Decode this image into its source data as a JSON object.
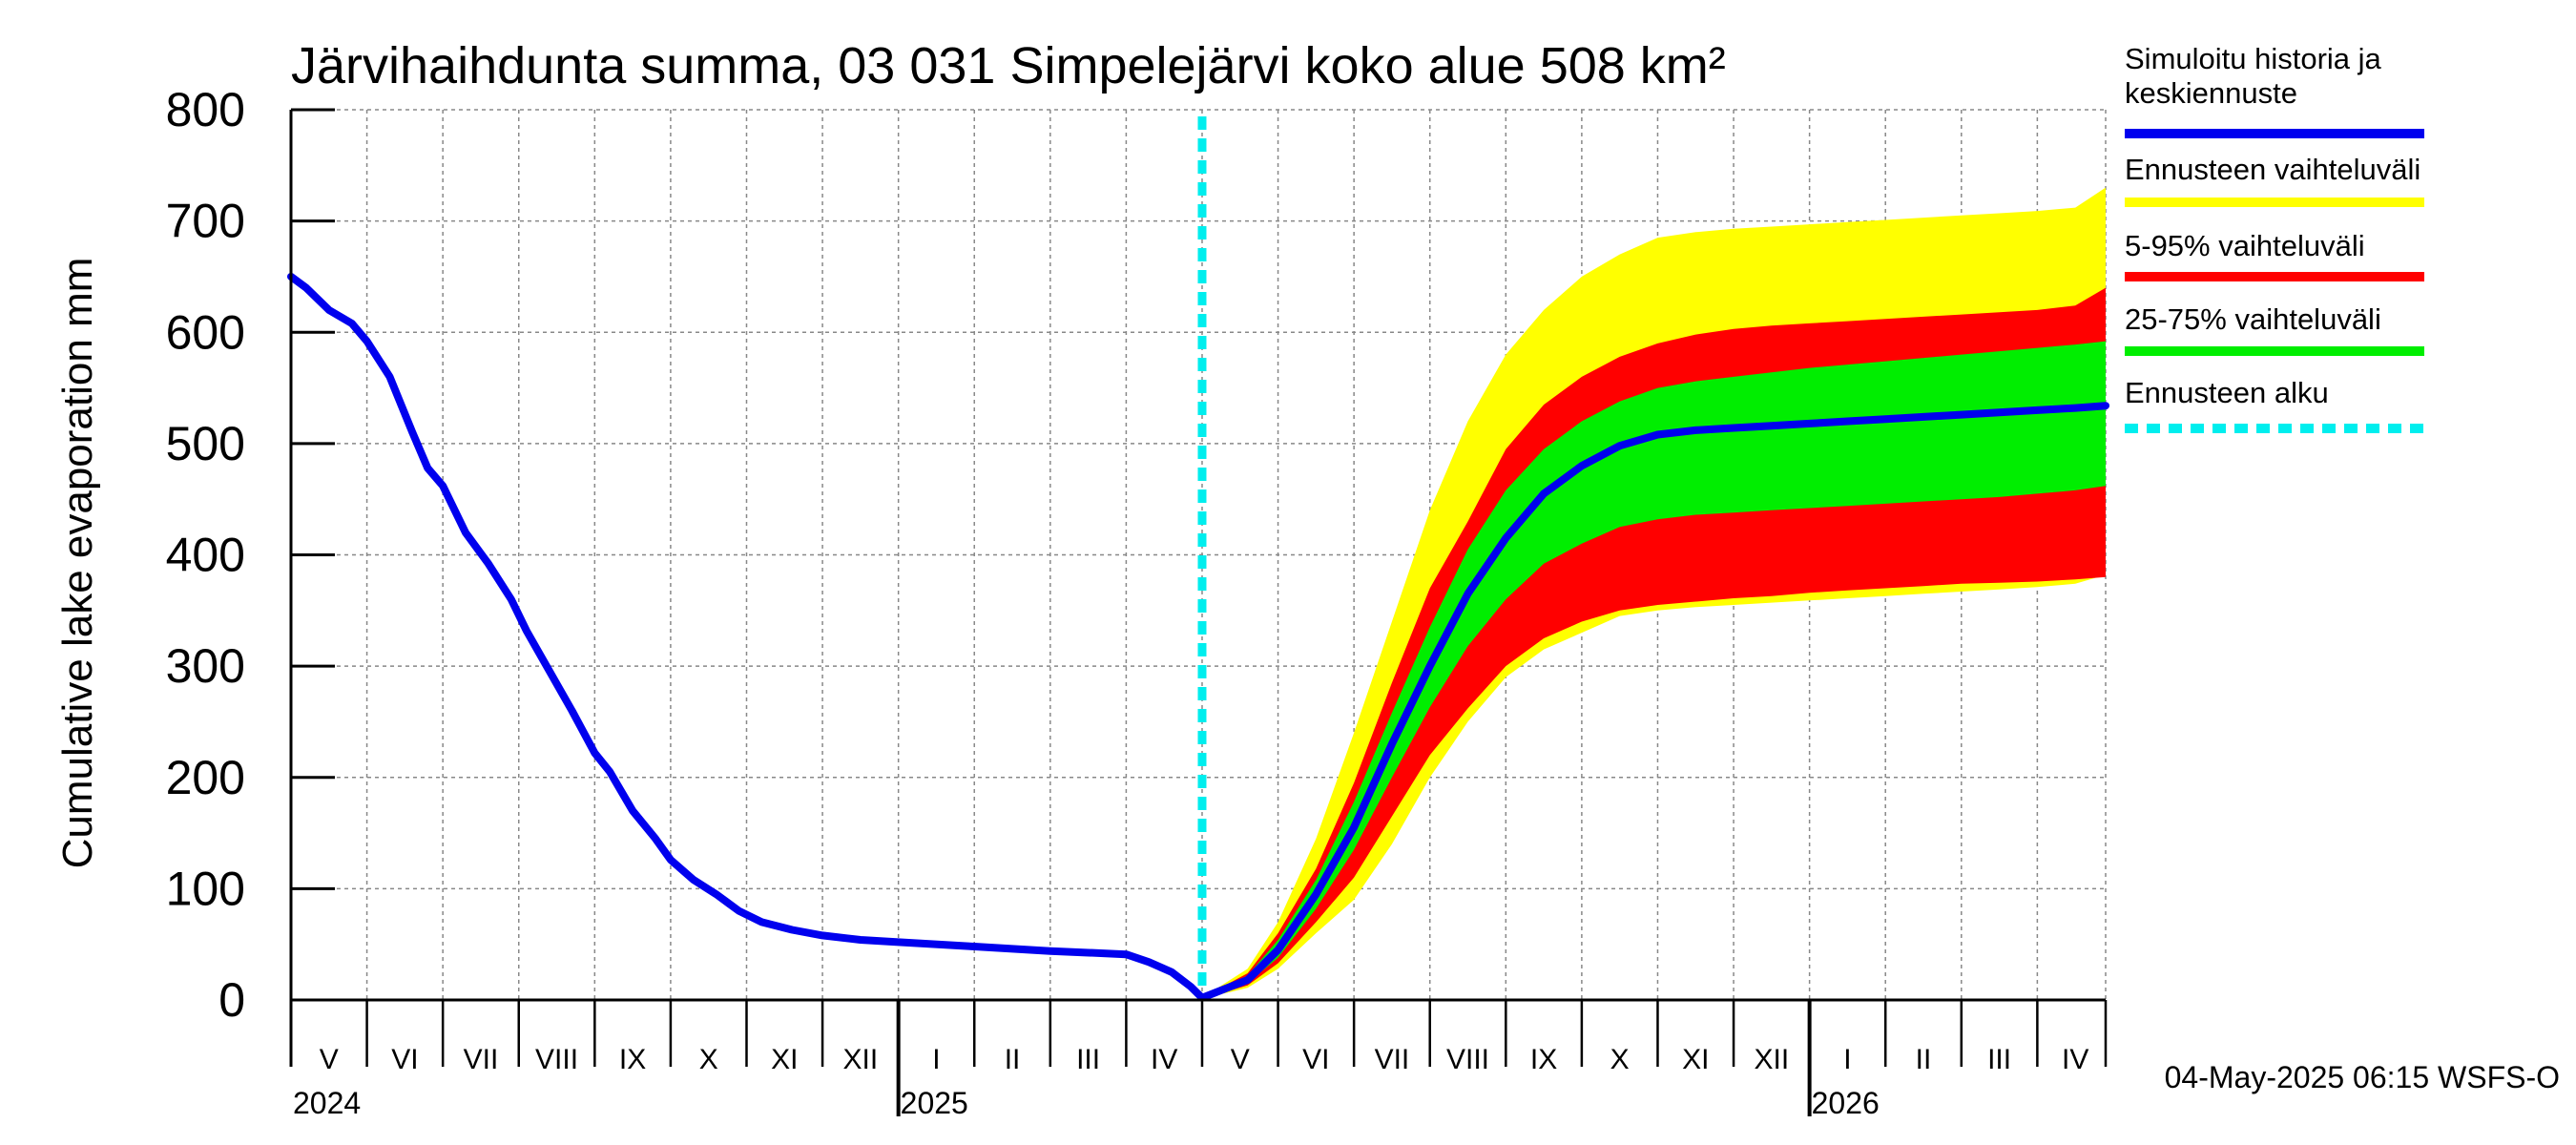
{
  "chart_data": {
    "type": "area",
    "title": "Järvihaihdunta summa, 03 031 Simpelejärvi koko alue 508 km²",
    "ylabel": "Cumulative lake evaporation   mm",
    "xlabel": "",
    "ylim": [
      0,
      800
    ],
    "yticks": [
      0,
      100,
      200,
      300,
      400,
      500,
      600,
      700,
      800
    ],
    "grid": true,
    "legend_position": "right",
    "month_labels": [
      "V",
      "VI",
      "VII",
      "VIII",
      "IX",
      "X",
      "XI",
      "XII",
      "I",
      "II",
      "III",
      "IV",
      "V",
      "VI",
      "VII",
      "VIII",
      "IX",
      "X",
      "XI",
      "XII",
      "I",
      "II",
      "III",
      "IV"
    ],
    "year_labels": [
      "2024",
      "2025",
      "2026"
    ],
    "forecast_start": "2025-05-01",
    "history": {
      "name": "Simuloitu historia ja keskiennuste",
      "color": "#0000ee",
      "points": [
        [
          0,
          650
        ],
        [
          0.2,
          640
        ],
        [
          0.5,
          620
        ],
        [
          0.8,
          608
        ],
        [
          1.0,
          592
        ],
        [
          1.3,
          560
        ],
        [
          1.6,
          510
        ],
        [
          1.8,
          478
        ],
        [
          2.0,
          462
        ],
        [
          2.3,
          420
        ],
        [
          2.6,
          392
        ],
        [
          2.9,
          360
        ],
        [
          3.1,
          332
        ],
        [
          3.4,
          296
        ],
        [
          3.7,
          260
        ],
        [
          4.0,
          222
        ],
        [
          4.2,
          205
        ],
        [
          4.5,
          170
        ],
        [
          4.8,
          145
        ],
        [
          5.0,
          126
        ],
        [
          5.3,
          108
        ],
        [
          5.6,
          95
        ],
        [
          5.9,
          80
        ],
        [
          6.2,
          70
        ],
        [
          6.6,
          63
        ],
        [
          7.0,
          58
        ],
        [
          7.5,
          54
        ],
        [
          8.0,
          52
        ],
        [
          9.0,
          48
        ],
        [
          10.0,
          44
        ],
        [
          11.0,
          41
        ],
        [
          11.3,
          34
        ],
        [
          11.6,
          25
        ],
        [
          11.85,
          12
        ],
        [
          12.0,
          2
        ]
      ]
    },
    "forecast": {
      "x": [
        12.0,
        12.3,
        12.6,
        13.0,
        13.5,
        14.0,
        14.5,
        15.0,
        15.5,
        16.0,
        16.5,
        17.0,
        17.5,
        18.0,
        18.5,
        19.0,
        19.5,
        20.0,
        20.5,
        21.0,
        21.5,
        22.0,
        22.5,
        23.0,
        23.5,
        23.9
      ],
      "median": [
        2,
        10,
        18,
        45,
        95,
        155,
        230,
        300,
        365,
        415,
        455,
        480,
        498,
        508,
        512,
        514,
        516,
        518,
        520,
        522,
        524,
        526,
        528,
        530,
        532,
        534
      ],
      "p25": [
        2,
        8,
        15,
        38,
        82,
        135,
        200,
        263,
        318,
        360,
        392,
        410,
        425,
        432,
        436,
        438,
        440,
        442,
        444,
        446,
        448,
        450,
        452,
        455,
        458,
        462
      ],
      "p75": [
        2,
        12,
        22,
        54,
        108,
        178,
        258,
        335,
        405,
        458,
        495,
        520,
        538,
        550,
        556,
        560,
        564,
        568,
        571,
        574,
        577,
        580,
        583,
        586,
        589,
        592
      ],
      "p5": [
        2,
        7,
        13,
        33,
        70,
        110,
        165,
        220,
        262,
        300,
        325,
        340,
        350,
        355,
        358,
        361,
        363,
        366,
        368,
        370,
        372,
        374,
        375,
        376,
        378,
        380
      ],
      "p95": [
        2,
        13,
        24,
        60,
        118,
        195,
        285,
        370,
        430,
        495,
        535,
        560,
        578,
        590,
        598,
        603,
        606,
        608,
        610,
        612,
        614,
        616,
        618,
        620,
        624,
        640
      ],
      "min": [
        2,
        6,
        11,
        28,
        60,
        90,
        140,
        200,
        250,
        290,
        315,
        330,
        345,
        350,
        353,
        355,
        357,
        359,
        361,
        363,
        365,
        367,
        369,
        371,
        374,
        382
      ],
      "max": [
        2,
        15,
        28,
        70,
        145,
        240,
        340,
        440,
        520,
        580,
        620,
        650,
        670,
        685,
        690,
        693,
        695,
        697,
        699,
        701,
        703,
        705,
        707,
        709,
        712,
        730
      ],
      "median_color": "#0000ee",
      "band_5_95_color": "#ff0000",
      "band_25_75_color": "#00ee00",
      "band_minmax_color": "#ffff00"
    },
    "legend": [
      {
        "label_line1": "Simuloitu historia ja",
        "label_line2": "keskiennuste",
        "color": "#0000ee",
        "style": "solid"
      },
      {
        "label_line1": "Ennusteen vaihteluväli",
        "label_line2": "",
        "color": "#ffff00",
        "style": "solid"
      },
      {
        "label_line1": "5-95% vaihteluväli",
        "label_line2": "",
        "color": "#ff0000",
        "style": "solid"
      },
      {
        "label_line1": "25-75% vaihteluväli",
        "label_line2": "",
        "color": "#00ee00",
        "style": "solid"
      },
      {
        "label_line1": "Ennusteen alku",
        "label_line2": "",
        "color": "#00eeee",
        "style": "dashed"
      }
    ],
    "footer": "04-May-2025 06:15 WSFS-O"
  }
}
